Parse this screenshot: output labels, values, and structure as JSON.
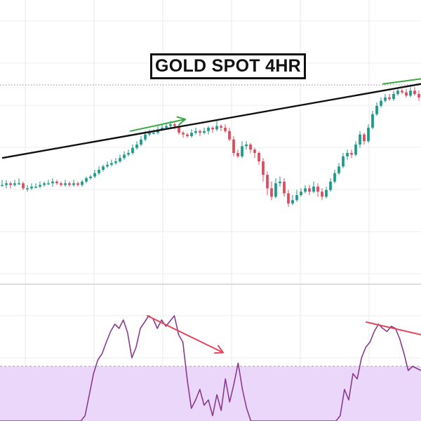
{
  "chart_data": [
    {
      "type": "candlestick",
      "title": "GOLD SPOT 4HR",
      "xlabel": "",
      "ylabel": "",
      "ylim": [
        0,
        100
      ],
      "grid": true,
      "legend": "none",
      "colors": {
        "up": "#1a9a8a",
        "down": "#e0485c",
        "trendline": "#111111",
        "arrow": "#3aa845"
      },
      "candles": [
        [
          36,
          36,
          39,
          35
        ],
        [
          36,
          37,
          39,
          34
        ],
        [
          37,
          36,
          38,
          34
        ],
        [
          36,
          37,
          39,
          35
        ],
        [
          37,
          37,
          40,
          36
        ],
        [
          37,
          34,
          38,
          33
        ],
        [
          34,
          34,
          36,
          32
        ],
        [
          34,
          35,
          37,
          33
        ],
        [
          35,
          35,
          37,
          34
        ],
        [
          35,
          36,
          38,
          34
        ],
        [
          36,
          37,
          38,
          35
        ],
        [
          37,
          37,
          39,
          36
        ],
        [
          37,
          38,
          40,
          35
        ],
        [
          38,
          37,
          39,
          36
        ],
        [
          37,
          36,
          38,
          35
        ],
        [
          36,
          37,
          39,
          35
        ],
        [
          37,
          36,
          38,
          35
        ],
        [
          36,
          37,
          39,
          35
        ],
        [
          37,
          36,
          38,
          35
        ],
        [
          36,
          38,
          39,
          35
        ],
        [
          38,
          40,
          41,
          37
        ],
        [
          40,
          41,
          42,
          39
        ],
        [
          41,
          43,
          45,
          40
        ],
        [
          43,
          45,
          47,
          42
        ],
        [
          45,
          47,
          48,
          44
        ],
        [
          47,
          48,
          50,
          46
        ],
        [
          48,
          49,
          51,
          47
        ],
        [
          49,
          50,
          52,
          48
        ],
        [
          50,
          52,
          54,
          49
        ],
        [
          52,
          54,
          56,
          51
        ],
        [
          54,
          55,
          57,
          53
        ],
        [
          55,
          58,
          60,
          54
        ],
        [
          58,
          60,
          62,
          57
        ],
        [
          60,
          63,
          65,
          59
        ],
        [
          63,
          66,
          68,
          62
        ],
        [
          66,
          67,
          69,
          65
        ],
        [
          67,
          67,
          69,
          66
        ],
        [
          67,
          69,
          71,
          66
        ],
        [
          69,
          70,
          72,
          68
        ],
        [
          70,
          71,
          73,
          69
        ],
        [
          71,
          72,
          74,
          70
        ],
        [
          72,
          71,
          73,
          69
        ],
        [
          71,
          67,
          72,
          66
        ],
        [
          67,
          66,
          68,
          64
        ],
        [
          66,
          65,
          67,
          64
        ],
        [
          65,
          67,
          69,
          64
        ],
        [
          67,
          68,
          70,
          66
        ],
        [
          68,
          67,
          69,
          65
        ],
        [
          67,
          68,
          70,
          66
        ],
        [
          68,
          70,
          71,
          66
        ],
        [
          70,
          69,
          71,
          67
        ],
        [
          69,
          71,
          74,
          68
        ],
        [
          71,
          70,
          72,
          68
        ],
        [
          70,
          68,
          72,
          67
        ],
        [
          68,
          63,
          70,
          62
        ],
        [
          63,
          55,
          65,
          53
        ],
        [
          55,
          53,
          57,
          52
        ],
        [
          53,
          59,
          62,
          52
        ],
        [
          59,
          60,
          62,
          57
        ],
        [
          60,
          57,
          61,
          55
        ],
        [
          57,
          55,
          58,
          52
        ],
        [
          55,
          50,
          56,
          48
        ],
        [
          50,
          42,
          52,
          38
        ],
        [
          42,
          34,
          44,
          30
        ],
        [
          34,
          29,
          38,
          27
        ],
        [
          29,
          37,
          40,
          28
        ],
        [
          37,
          38,
          41,
          35
        ],
        [
          38,
          31,
          40,
          29
        ],
        [
          31,
          25,
          33,
          23
        ],
        [
          25,
          27,
          30,
          24
        ],
        [
          27,
          30,
          33,
          26
        ],
        [
          30,
          32,
          34,
          29
        ],
        [
          32,
          34,
          36,
          31
        ],
        [
          34,
          32,
          36,
          30
        ],
        [
          32,
          35,
          38,
          31
        ],
        [
          35,
          32,
          37,
          29
        ],
        [
          32,
          29,
          34,
          27
        ],
        [
          29,
          33,
          35,
          28
        ],
        [
          33,
          38,
          40,
          32
        ],
        [
          38,
          43,
          45,
          37
        ],
        [
          43,
          47,
          49,
          42
        ],
        [
          47,
          53,
          55,
          46
        ],
        [
          53,
          55,
          57,
          51
        ],
        [
          55,
          54,
          57,
          52
        ],
        [
          54,
          60,
          62,
          53
        ],
        [
          60,
          66,
          68,
          58
        ],
        [
          66,
          62,
          67,
          60
        ],
        [
          62,
          70,
          72,
          61
        ],
        [
          70,
          78,
          80,
          69
        ],
        [
          78,
          83,
          85,
          77
        ],
        [
          83,
          86,
          88,
          82
        ],
        [
          86,
          88,
          90,
          85
        ],
        [
          88,
          87,
          90,
          86
        ],
        [
          87,
          90,
          92,
          86
        ],
        [
          90,
          92,
          94,
          89
        ],
        [
          92,
          91,
          93,
          90
        ],
        [
          91,
          89,
          93,
          88
        ],
        [
          89,
          92,
          94,
          88
        ],
        [
          92,
          90,
          94,
          89
        ],
        [
          90,
          88,
          92,
          86
        ]
      ],
      "trendline": {
        "from": [
          0,
          52
        ],
        "to": [
          99,
          96
        ]
      },
      "arrows": [
        {
          "from": [
            31,
            68
          ],
          "to": [
            44,
            75
          ]
        },
        {
          "from": [
            91,
            96
          ],
          "to": [
            100,
            99
          ]
        }
      ]
    },
    {
      "type": "line",
      "title": "",
      "xlabel": "",
      "ylabel": "",
      "ylim": [
        0,
        100
      ],
      "band": [
        0,
        52
      ],
      "colors": {
        "line": "#8a3a8f",
        "band": "#ead7fa",
        "arrow": "#e0485c"
      },
      "series": [
        {
          "values": [
            0,
            0,
            0,
            0,
            0,
            0,
            0,
            0,
            0,
            0,
            0,
            0,
            0,
            0,
            0,
            0,
            0,
            0,
            0,
            0,
            5,
            25,
            45,
            58,
            64,
            75,
            85,
            92,
            88,
            96,
            84,
            60,
            70,
            88,
            94,
            100,
            97,
            88,
            96,
            90,
            95,
            100,
            82,
            75,
            40,
            12,
            20,
            30,
            15,
            20,
            5,
            25,
            10,
            40,
            18,
            35,
            55,
            30,
            12,
            0,
            0,
            0,
            0,
            0,
            0,
            0,
            0,
            0,
            0,
            0,
            0,
            0,
            0,
            0,
            0,
            0,
            0,
            0,
            0,
            0,
            5,
            30,
            20,
            45,
            40,
            60,
            70,
            75,
            85,
            92,
            88,
            85,
            90,
            88,
            78,
            64,
            48,
            52,
            50,
            48
          ]
        }
      ],
      "arrows": [
        {
          "from": [
            35,
            100
          ],
          "to": [
            53,
            65
          ]
        },
        {
          "from": [
            87,
            94
          ],
          "to": [
            100,
            82
          ]
        }
      ]
    }
  ]
}
